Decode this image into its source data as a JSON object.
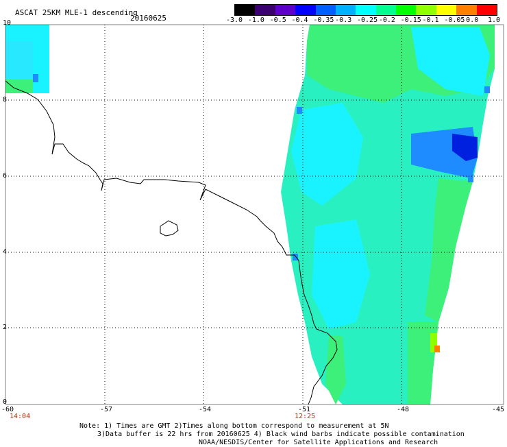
{
  "header": {
    "title": "ASCAT 25KM MLE-1 descending",
    "date": "20160625"
  },
  "colorbar": {
    "labels": [
      "-3.0",
      "-1.0",
      "-0.5",
      "-0.4",
      "-0.35",
      "-0.3",
      "-0.25",
      "-0.2",
      "-0.15",
      "-0.1",
      "-0.05",
      "0.0",
      "1.0"
    ],
    "colors": [
      "#000000",
      "#3a0070",
      "#5a00c8",
      "#0000ff",
      "#0060ff",
      "#00b0ff",
      "#00ffff",
      "#00ff90",
      "#00ff00",
      "#90ff00",
      "#ffff00",
      "#ff8000",
      "#ff0000"
    ]
  },
  "map": {
    "lat_labels": [
      "10",
      "8",
      "6",
      "4",
      "2",
      "0"
    ],
    "lon_labels": [
      "-60",
      "-57",
      "-54",
      "-51",
      "-48",
      "-45"
    ],
    "pass_times": [
      "14:04",
      "12:25"
    ],
    "colors": {
      "grid": "#000000",
      "coast": "#000000",
      "swath_main": "#28f0c0",
      "swath_green": "#3cf07a",
      "swath_cyan": "#19f3ff",
      "swath_blue": "#1e8cff",
      "swath_deep": "#0020e0"
    }
  },
  "footer": {
    "note_line1": "Note: 1) Times are GMT 2)Times along bottom correspond to measurement at 5N",
    "note_line2": "3)Data buffer is 22 hrs from 20160625 4) Black wind barbs indicate possible contamination",
    "credit": "NOAA/NESDIS/Center for Satellite Applications and Research"
  }
}
